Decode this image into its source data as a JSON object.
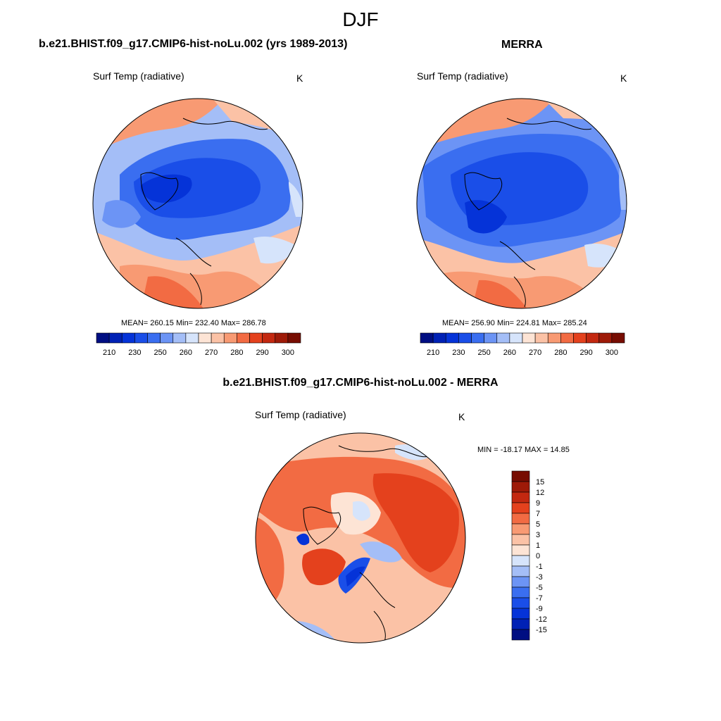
{
  "figure": {
    "title": "DJF"
  },
  "panels": {
    "model": {
      "title": "b.e21.BHIST.f09_g17.CMIP6-hist-noLu.002 (yrs 1989-2013)",
      "variable": "Surf Temp (radiative)",
      "units": "K",
      "stats": "MEAN= 260.15  Min= 232.40  Max= 286.78"
    },
    "obs": {
      "title": "MERRA",
      "variable": "Surf Temp (radiative)",
      "units": "K",
      "stats": "MEAN= 256.90  Min= 224.81  Max= 285.24"
    },
    "diff": {
      "title": "b.e21.BHIST.f09_g17.CMIP6-hist-noLu.002 - MERRA",
      "variable": "Surf Temp (radiative)",
      "units": "K",
      "stats": "MIN = -18.17 MAX =  14.85"
    }
  },
  "colorbars": {
    "absolute": {
      "colors": [
        "#000e82",
        "#0021b5",
        "#0533d8",
        "#1a4ee8",
        "#3a6ef0",
        "#6c94f5",
        "#a4bef7",
        "#d6e4fb",
        "#fde4d5",
        "#fbc2a6",
        "#f89a73",
        "#f26b43",
        "#e4411d",
        "#c32810",
        "#9e1a08",
        "#770d02"
      ],
      "tick_labels": [
        "210",
        "230",
        "250",
        "260",
        "270",
        "280",
        "290",
        "300"
      ]
    },
    "difference": {
      "colors": [
        "#000e82",
        "#0021b5",
        "#0533d8",
        "#1a4ee8",
        "#3a6ef0",
        "#6c94f5",
        "#a4bef7",
        "#d6e4fb",
        "#fde4d5",
        "#fbc2a6",
        "#f89a73",
        "#f26b43",
        "#e4411d",
        "#c32810",
        "#9e1a08",
        "#770d02"
      ],
      "tick_labels": [
        "-15",
        "-12",
        "-9",
        "-7",
        "-5",
        "-3",
        "-1",
        "0",
        "1",
        "3",
        "5",
        "7",
        "9",
        "12",
        "15"
      ]
    }
  }
}
